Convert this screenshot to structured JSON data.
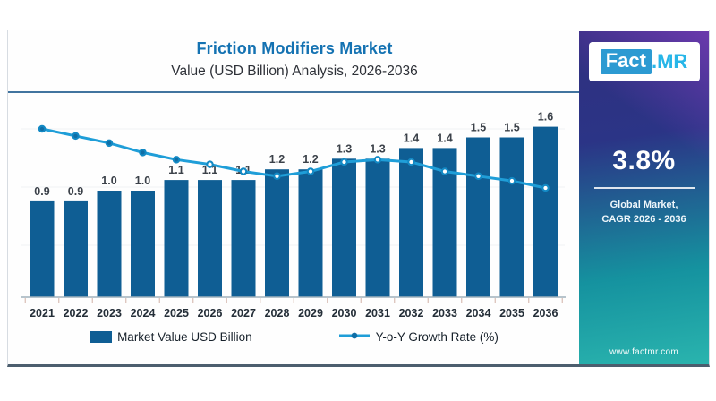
{
  "header": {
    "title": "Friction Modifiers Market",
    "subtitle": "Value (USD Billion) Analysis, 2026-2036"
  },
  "brand_panel": {
    "logo_part1": "Fact",
    "logo_part2": ".MR",
    "stat_value": "3.8%",
    "stat_caption_line1": "Global Market,",
    "stat_caption_line2": "CAGR 2026 - 2036",
    "website": "www.factmr.com"
  },
  "chart_data": {
    "type": "bar",
    "title": "Friction Modifiers Market",
    "subtitle": "Value (USD Billion) Analysis, 2026-2036",
    "categories": [
      "2021",
      "2022",
      "2023",
      "2024",
      "2025",
      "2026",
      "2027",
      "2028",
      "2029",
      "2030",
      "2031",
      "2032",
      "2033",
      "2034",
      "2035",
      "2036"
    ],
    "series": [
      {
        "name": "Market Value USD Billion",
        "type": "bar",
        "color": "#0f5e94",
        "values": [
          0.9,
          0.9,
          1.0,
          1.0,
          1.1,
          1.1,
          1.1,
          1.2,
          1.2,
          1.3,
          1.3,
          1.4,
          1.4,
          1.5,
          1.5,
          1.6
        ]
      },
      {
        "name": "Y-o-Y Growth Rate (%)",
        "type": "line",
        "color": "#1f9ed8",
        "values_estimated_from_pixels": true,
        "values": [
          5.5,
          5.2,
          4.9,
          4.5,
          4.2,
          4.0,
          3.7,
          3.5,
          3.7,
          4.1,
          4.2,
          4.1,
          3.7,
          3.5,
          3.3,
          3.0
        ]
      }
    ],
    "xlabel": "",
    "ylabel": "",
    "bar_value_labels_shown": true,
    "legend_position": "bottom",
    "bar_ylim": [
      0,
      1.75
    ],
    "grid": "faint-horizontal"
  }
}
